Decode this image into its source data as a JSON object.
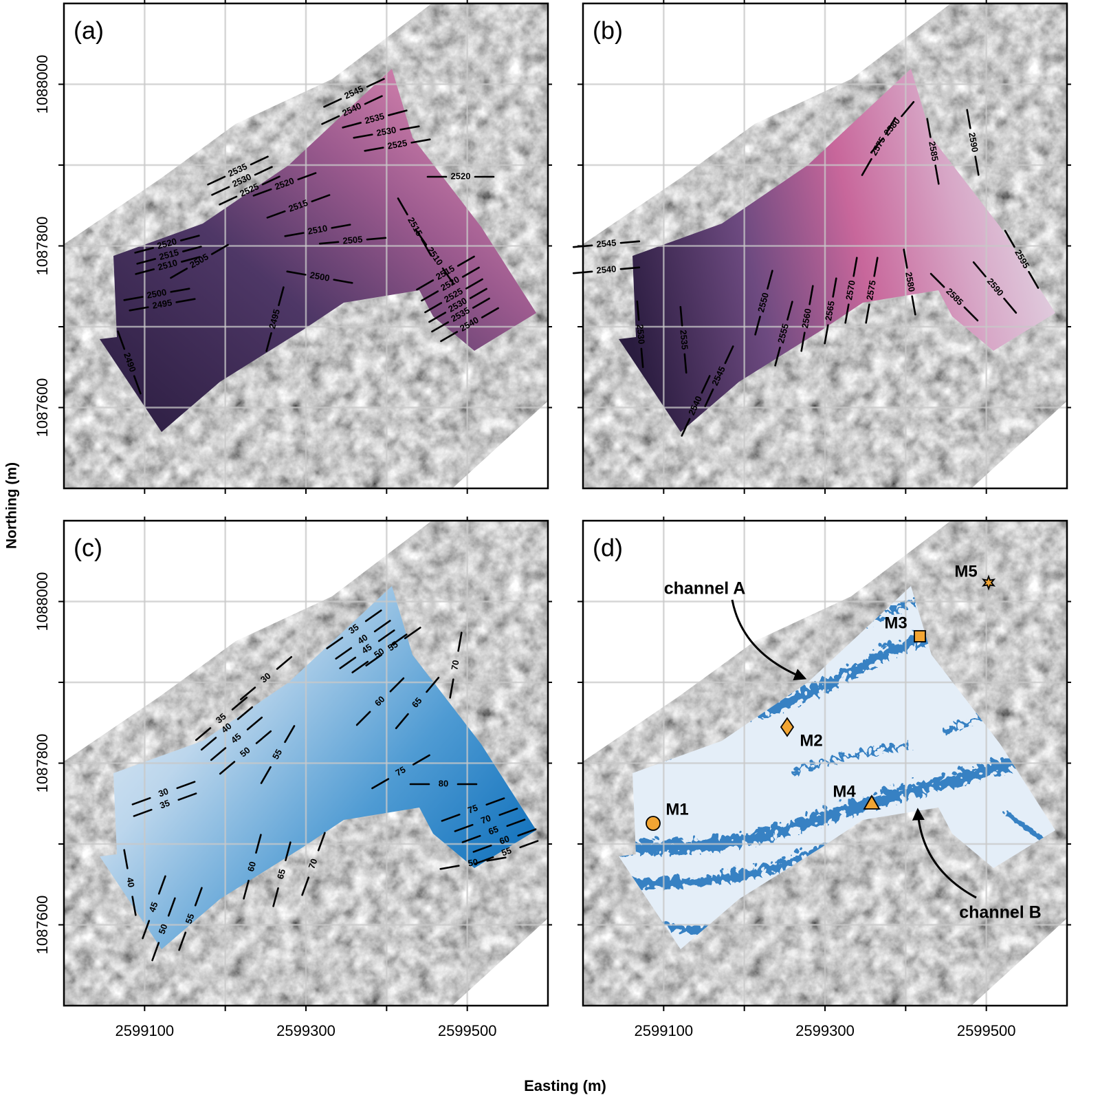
{
  "axes": {
    "x_label": "Easting (m)",
    "y_label": "Northing (m)",
    "xlim": [
      2599000,
      2599600
    ],
    "ylim": [
      1087500,
      1088100
    ],
    "xticks": [
      2599100,
      2599300,
      2599500
    ],
    "yticks": [
      1087600,
      1087800,
      1088000
    ],
    "x_grid": [
      2599100,
      2599200,
      2599300,
      2599400,
      2599500
    ],
    "y_grid": [
      1087600,
      1087700,
      1087800,
      1087900,
      1088000
    ],
    "grid": true
  },
  "panels": [
    {
      "label": "(a)",
      "contour_labels": [
        2545,
        2540,
        2535,
        2530,
        2525,
        2520,
        2535,
        2530,
        2525,
        2520,
        2515,
        2510,
        2515,
        2505,
        2510,
        2520,
        2515,
        2510,
        2505,
        2500,
        2500,
        2495,
        2515,
        2520,
        2525,
        2530,
        2535,
        2540,
        2495,
        2490
      ]
    },
    {
      "label": "(b)",
      "contour_labels": [
        2545,
        2540,
        2530,
        2535,
        2545,
        2540,
        2550,
        2555,
        2560,
        2565,
        2570,
        2575,
        2580,
        2585,
        2590,
        2595,
        2575,
        2580,
        2585,
        2590
      ]
    },
    {
      "label": "(c)",
      "contour_labels": [
        35,
        40,
        45,
        50,
        55,
        30,
        60,
        65,
        70,
        35,
        40,
        45,
        50,
        55,
        75,
        80,
        30,
        35,
        75,
        70,
        65,
        60,
        55,
        50,
        60,
        65,
        70,
        40,
        45,
        50,
        55
      ]
    },
    {
      "label": "(d)",
      "annotations": [
        "channel A",
        "channel B"
      ],
      "sites": [
        "M1",
        "M2",
        "M3",
        "M4",
        "M5"
      ]
    }
  ]
}
